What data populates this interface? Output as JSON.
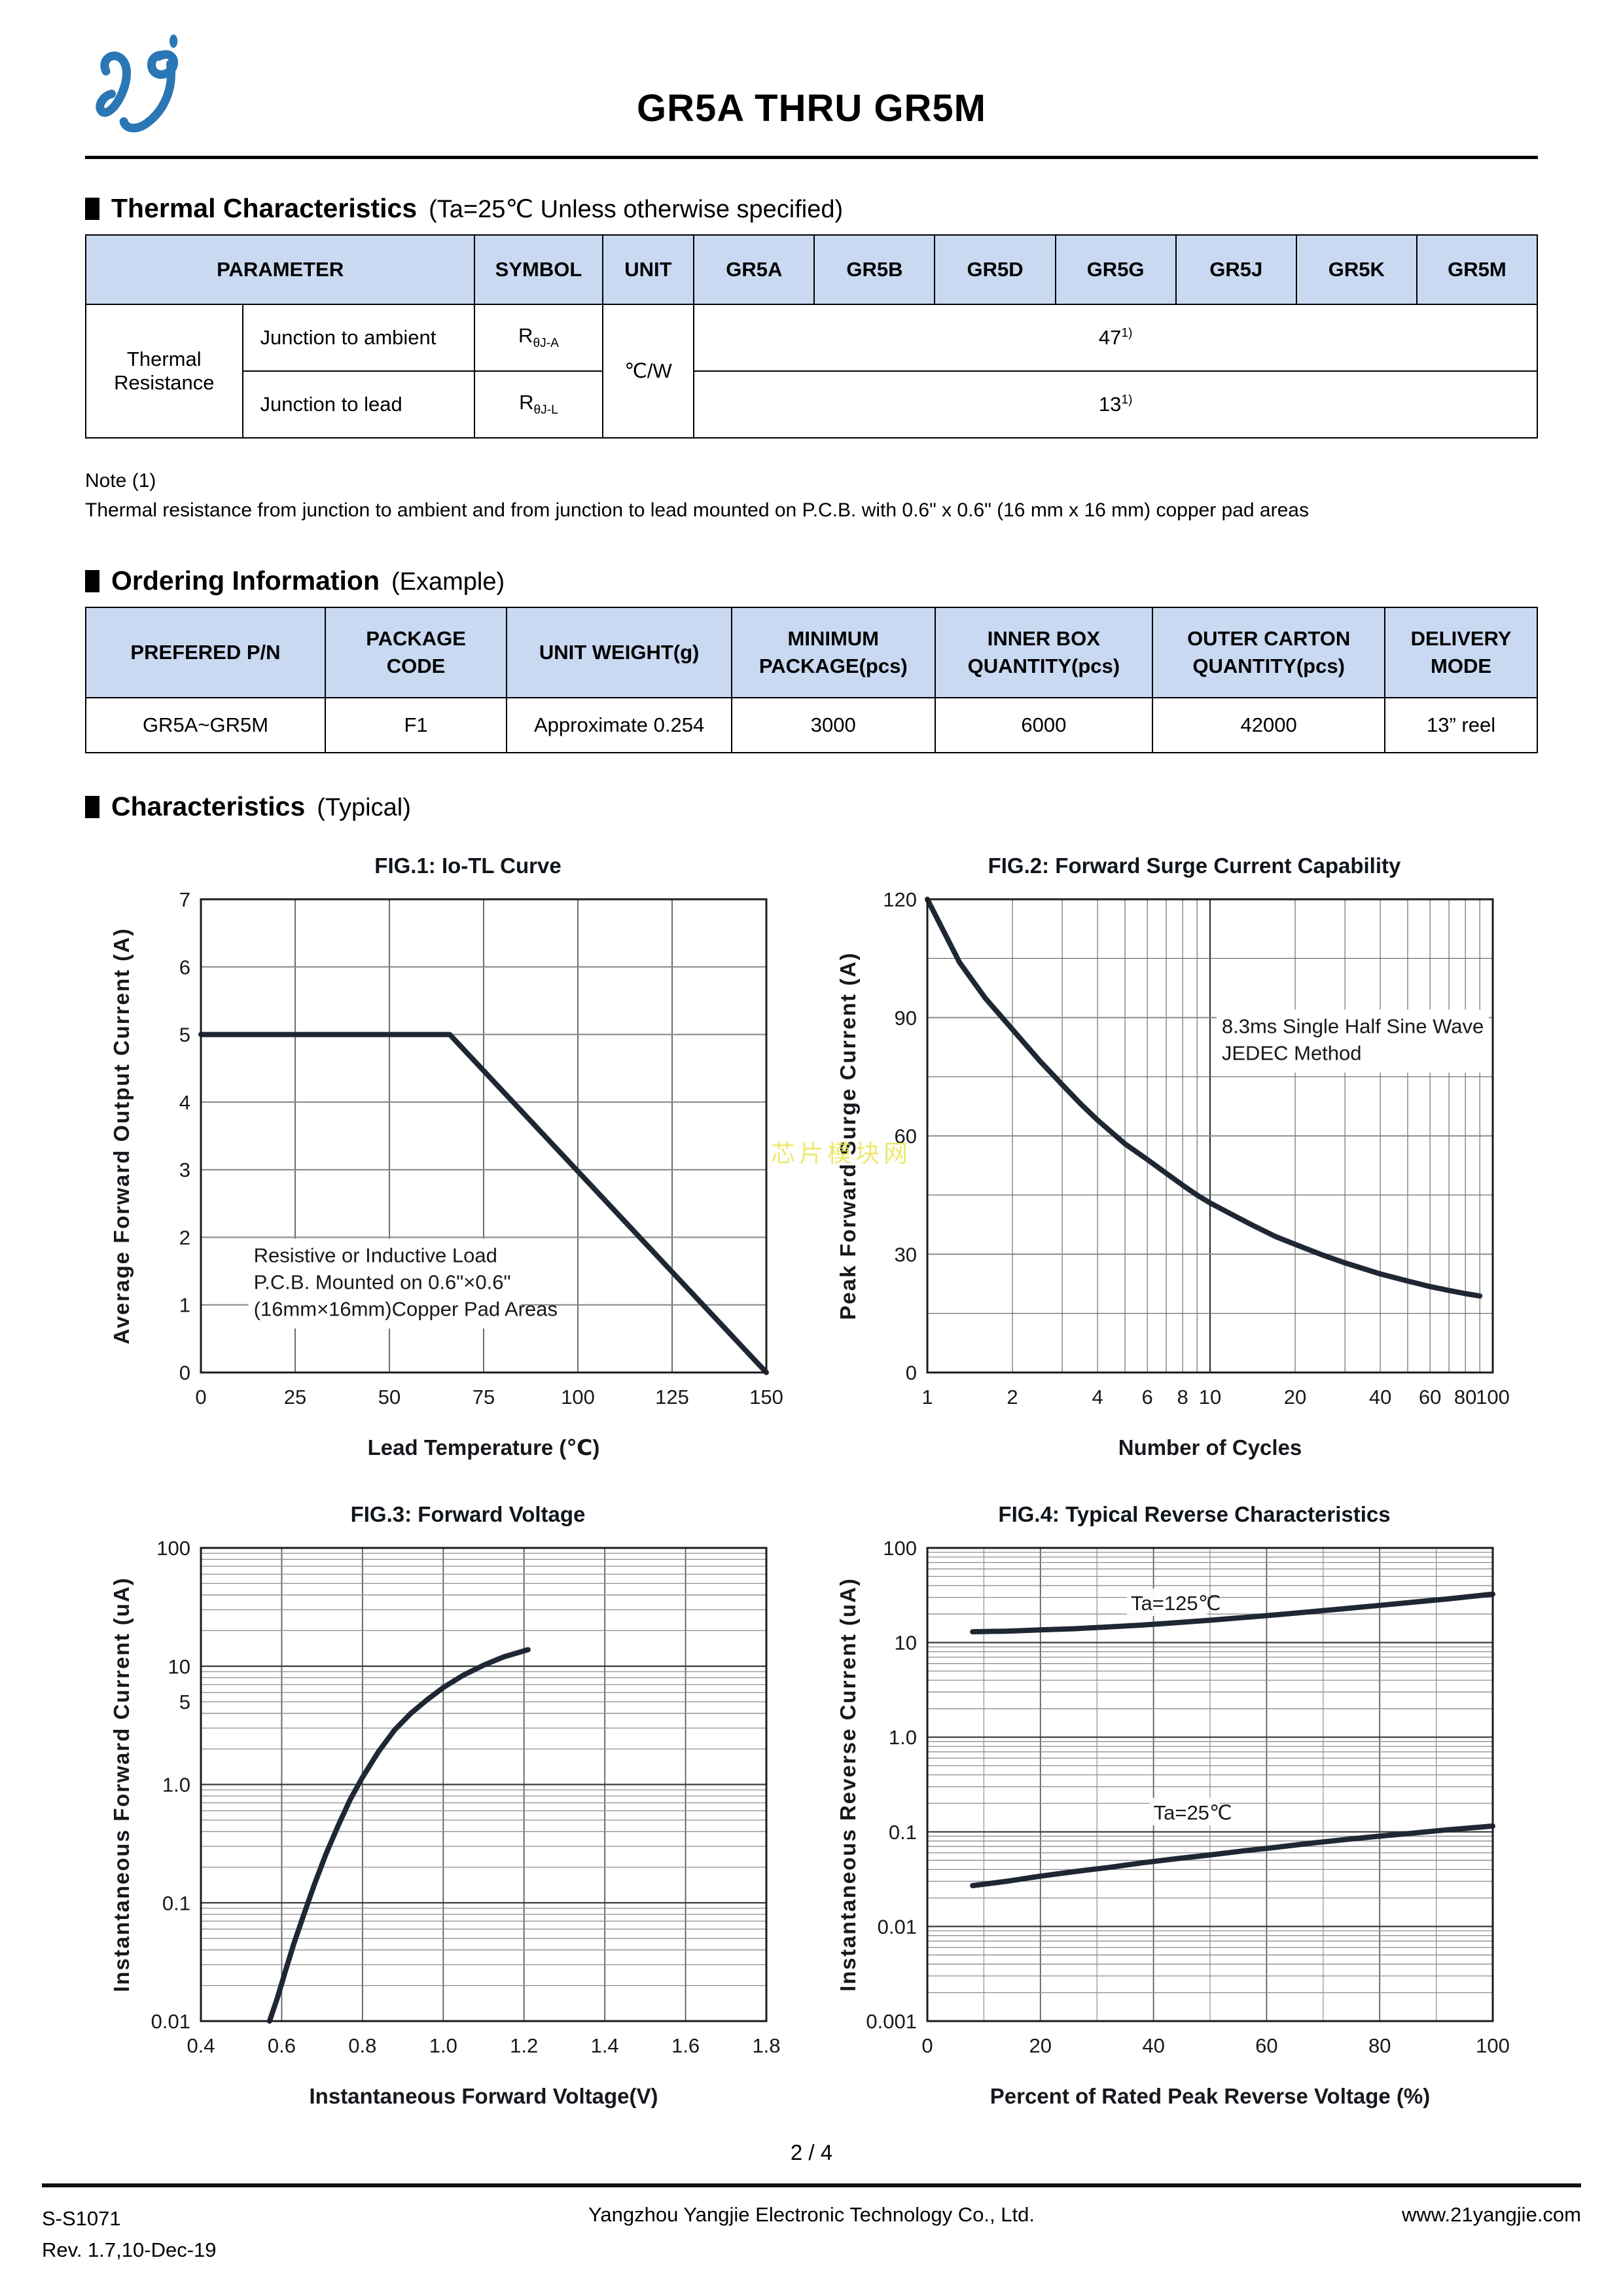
{
  "page": {
    "title": "GR5A THRU GR5M",
    "page_number": "2 / 4"
  },
  "colors": {
    "table_header_bg": "#c9d9f1",
    "curve": "#1e2733",
    "logo_blue": "#2b77b5",
    "watermark_yellow": "#e9e44c"
  },
  "watermark": {
    "text": "芯片模块网"
  },
  "sections": {
    "thermal": {
      "title": "Thermal Characteristics",
      "subtitle": "(Ta=25℃ Unless otherwise specified)"
    },
    "ordering": {
      "title": "Ordering Information",
      "subtitle": "(Example)"
    },
    "characteristics": {
      "title": "Characteristics",
      "subtitle": "(Typical)"
    }
  },
  "thermal_table": {
    "header": {
      "parameter": "PARAMETER",
      "symbol": "SYMBOL",
      "unit": "UNIT",
      "parts": [
        "GR5A",
        "GR5B",
        "GR5D",
        "GR5G",
        "GR5J",
        "GR5K",
        "GR5M"
      ]
    },
    "group_label": "Thermal Resistance",
    "unit_value": "℃/W",
    "row1": {
      "param": "Junction to ambient",
      "symbol_base": "R",
      "symbol_sub": "θJ-A",
      "value": "47",
      "value_sup": "1)"
    },
    "row2": {
      "param": "Junction to lead",
      "symbol_base": "R",
      "symbol_sub": "θJ-L",
      "value": "13",
      "value_sup": "1)"
    }
  },
  "note": {
    "line1": "Note (1)",
    "line2": "Thermal resistance from junction to ambient and from junction to lead mounted on P.C.B. with 0.6\" x 0.6\" (16 mm x 16 mm) copper pad areas"
  },
  "ordering_table": {
    "headers": [
      "PREFERED P/N",
      "PACKAGE\nCODE",
      "UNIT WEIGHT(g)",
      "MINIMUM\nPACKAGE(pcs)",
      "INNER BOX\nQUANTITY(pcs)",
      "OUTER CARTON\nQUANTITY(pcs)",
      "DELIVERY\nMODE"
    ],
    "row": [
      "GR5A~GR5M",
      "F1",
      "Approximate 0.254",
      "3000",
      "6000",
      "42000",
      "13” reel"
    ]
  },
  "chart_data": [
    {
      "id": "fig1",
      "type": "line",
      "title": "FIG.1: Io-TL Curve",
      "xlabel": "Lead Temperature (℃)",
      "ylabel": "Average Forward Output Current (A)",
      "x": {
        "scale": "linear",
        "min": 0,
        "max": 150,
        "ticks": [
          [
            0,
            "0"
          ],
          [
            25,
            "25"
          ],
          [
            50,
            "50"
          ],
          [
            75,
            "75"
          ],
          [
            100,
            "100"
          ],
          [
            125,
            "125"
          ],
          [
            150,
            "150"
          ]
        ]
      },
      "y": {
        "scale": "linear",
        "min": 0,
        "max": 7,
        "ticks": [
          [
            0,
            "0"
          ],
          [
            1,
            "1"
          ],
          [
            2,
            "2"
          ],
          [
            3,
            "3"
          ],
          [
            4,
            "4"
          ],
          [
            5,
            "5"
          ],
          [
            6,
            "6"
          ],
          [
            7,
            "7"
          ]
        ]
      },
      "grid": true,
      "legend_position": "none",
      "series": [
        {
          "name": "Io-TL",
          "points": [
            [
              0,
              5
            ],
            [
              66,
              5
            ],
            [
              150,
              0
            ]
          ]
        }
      ],
      "annotation": {
        "x": 14,
        "y": 1.92,
        "lines": [
          "Resistive or Inductive Load",
          "P.C.B. Mounted on 0.6\"×0.6\"",
          "(16mm×16mm)Copper Pad Areas"
        ]
      }
    },
    {
      "id": "fig2",
      "type": "line",
      "title": "FIG.2: Forward Surge Current Capability",
      "xlabel": "Number of Cycles",
      "ylabel": "Peak Forward Surge Current (A)",
      "x": {
        "scale": "log",
        "min": 1,
        "max": 100,
        "ticks": [
          [
            1,
            "1"
          ],
          [
            2,
            "2"
          ],
          [
            4,
            "4"
          ],
          [
            6,
            "6"
          ],
          [
            8,
            "8"
          ],
          [
            10,
            "10"
          ],
          [
            20,
            "20"
          ],
          [
            40,
            "40"
          ],
          [
            60,
            "60"
          ],
          [
            80,
            "80"
          ],
          [
            100,
            "100"
          ]
        ]
      },
      "y": {
        "scale": "linear",
        "min": 0,
        "max": 120,
        "minor_step": 15,
        "ticks": [
          [
            0,
            "0"
          ],
          [
            30,
            "30"
          ],
          [
            60,
            "60"
          ],
          [
            90,
            "90"
          ],
          [
            120,
            "120"
          ]
        ]
      },
      "grid": true,
      "legend_position": "none",
      "series": [
        {
          "name": "surge",
          "points": [
            [
              1,
              120
            ],
            [
              1.3,
              104
            ],
            [
              1.6,
              95
            ],
            [
              2,
              87
            ],
            [
              2.5,
              79
            ],
            [
              3,
              73
            ],
            [
              3.5,
              68
            ],
            [
              4,
              64
            ],
            [
              5,
              58
            ],
            [
              6,
              54
            ],
            [
              7,
              50.5
            ],
            [
              8,
              47.5
            ],
            [
              9,
              45
            ],
            [
              10,
              43
            ],
            [
              12,
              40
            ],
            [
              14,
              37.5
            ],
            [
              17,
              34.5
            ],
            [
              20,
              32.5
            ],
            [
              25,
              29.8
            ],
            [
              30,
              27.8
            ],
            [
              35,
              26.3
            ],
            [
              40,
              25
            ],
            [
              50,
              23.2
            ],
            [
              60,
              21.8
            ],
            [
              70,
              20.8
            ],
            [
              80,
              20
            ],
            [
              90,
              19.4
            ]
          ]
        }
      ],
      "annotation": {
        "x": 11,
        "y": 91,
        "lines": [
          "8.3ms Single Half Sine Wave",
          "JEDEC Method"
        ]
      }
    },
    {
      "id": "fig3",
      "type": "line",
      "title": "FIG.3: Forward Voltage",
      "xlabel": "Instantaneous Forward Voltage(V)",
      "ylabel": "Instantaneous Forward Current (uA)",
      "x": {
        "scale": "linear",
        "min": 0.4,
        "max": 1.8,
        "ticks": [
          [
            0.4,
            "0.4"
          ],
          [
            0.6,
            "0.6"
          ],
          [
            0.8,
            "0.8"
          ],
          [
            1.0,
            "1.0"
          ],
          [
            1.2,
            "1.2"
          ],
          [
            1.4,
            "1.4"
          ],
          [
            1.6,
            "1.6"
          ],
          [
            1.8,
            "1.8"
          ]
        ]
      },
      "y": {
        "scale": "log",
        "min": 0.01,
        "max": 100,
        "ticks": [
          [
            100,
            "100"
          ],
          [
            10,
            "10"
          ],
          [
            5,
            "5"
          ],
          [
            1,
            "1.0"
          ],
          [
            0.1,
            "0.1"
          ],
          [
            0.01,
            "0.01"
          ]
        ]
      },
      "grid": true,
      "legend_position": "none",
      "series": [
        {
          "name": "Vf",
          "points": [
            [
              0.57,
              0.01
            ],
            [
              0.59,
              0.016
            ],
            [
              0.61,
              0.027
            ],
            [
              0.63,
              0.045
            ],
            [
              0.655,
              0.08
            ],
            [
              0.68,
              0.14
            ],
            [
              0.71,
              0.26
            ],
            [
              0.74,
              0.45
            ],
            [
              0.77,
              0.75
            ],
            [
              0.8,
              1.15
            ],
            [
              0.84,
              1.9
            ],
            [
              0.88,
              2.9
            ],
            [
              0.92,
              4.0
            ],
            [
              0.96,
              5.2
            ],
            [
              1.0,
              6.6
            ],
            [
              1.05,
              8.4
            ],
            [
              1.1,
              10.2
            ],
            [
              1.15,
              12
            ],
            [
              1.21,
              13.8
            ]
          ]
        }
      ]
    },
    {
      "id": "fig4",
      "type": "line",
      "title": "FIG.4: Typical Reverse Characteristics",
      "xlabel": "Percent of Rated Peak Reverse Voltage (%)",
      "ylabel": "Instantaneous Reverse Current (uA)",
      "x": {
        "scale": "linear",
        "min": 0,
        "max": 100,
        "minor_step": 10,
        "ticks": [
          [
            0,
            "0"
          ],
          [
            20,
            "20"
          ],
          [
            40,
            "40"
          ],
          [
            60,
            "60"
          ],
          [
            80,
            "80"
          ],
          [
            100,
            "100"
          ]
        ]
      },
      "y": {
        "scale": "log",
        "min": 0.001,
        "max": 100,
        "ticks": [
          [
            100,
            "100"
          ],
          [
            10,
            "10"
          ],
          [
            1,
            "1.0"
          ],
          [
            0.1,
            "0.1"
          ],
          [
            0.01,
            "0.01"
          ],
          [
            0.001,
            "0.001"
          ]
        ]
      },
      "grid": true,
      "legend_position": "inline-labels",
      "series": [
        {
          "name": "Ta=125℃",
          "label": {
            "text": "Ta=125℃",
            "x": 36,
            "y": 22
          },
          "points": [
            [
              8,
              13
            ],
            [
              14,
              13.2
            ],
            [
              20,
              13.6
            ],
            [
              26,
              14
            ],
            [
              32,
              14.6
            ],
            [
              38,
              15.3
            ],
            [
              44,
              16.2
            ],
            [
              50,
              17.2
            ],
            [
              56,
              18.4
            ],
            [
              62,
              19.7
            ],
            [
              68,
              21.2
            ],
            [
              74,
              22.9
            ],
            [
              80,
              24.7
            ],
            [
              86,
              26.7
            ],
            [
              92,
              28.9
            ],
            [
              100,
              32.5
            ]
          ]
        },
        {
          "name": "Ta=25℃",
          "label": {
            "text": "Ta=25℃",
            "x": 40,
            "y": 0.135
          },
          "points": [
            [
              8,
              0.027
            ],
            [
              14,
              0.03
            ],
            [
              20,
              0.034
            ],
            [
              26,
              0.038
            ],
            [
              32,
              0.042
            ],
            [
              38,
              0.047
            ],
            [
              44,
              0.052
            ],
            [
              50,
              0.057
            ],
            [
              56,
              0.063
            ],
            [
              62,
              0.069
            ],
            [
              68,
              0.076
            ],
            [
              74,
              0.083
            ],
            [
              80,
              0.09
            ],
            [
              86,
              0.097
            ],
            [
              92,
              0.105
            ],
            [
              100,
              0.115
            ]
          ]
        }
      ]
    }
  ],
  "footer": {
    "doc_code": "S-S1071",
    "revision": "Rev. 1.7,10-Dec-19",
    "company": "Yangzhou Yangjie Electronic Technology Co., Ltd.",
    "website": "www.21yangjie.com"
  }
}
